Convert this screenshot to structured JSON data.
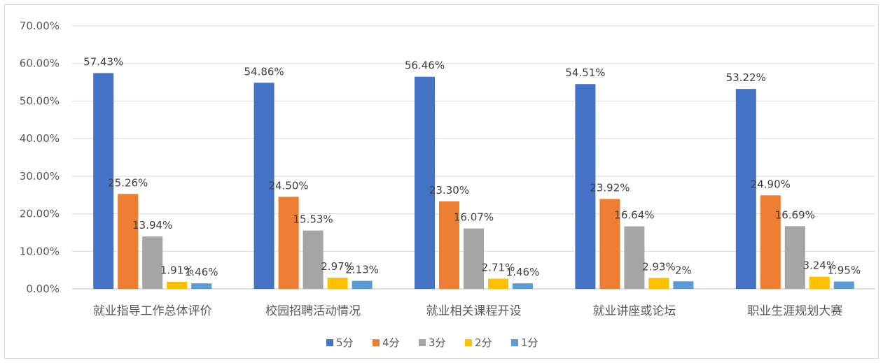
{
  "chart_data": {
    "type": "bar",
    "categories": [
      "就业指导工作总体评价",
      "校园招聘活动情况",
      "就业相关课程开设",
      "就业讲座或论坛",
      "职业生涯规划大赛"
    ],
    "series": [
      {
        "name": "5分",
        "color": "#4472C4",
        "values": [
          57.43,
          54.86,
          56.46,
          54.51,
          53.22
        ],
        "labels": [
          "57.43%",
          "54.86%",
          "56.46%",
          "54.51%",
          "53.22%"
        ]
      },
      {
        "name": "4分",
        "color": "#ED7D31",
        "values": [
          25.26,
          24.5,
          23.3,
          23.92,
          24.9
        ],
        "labels": [
          "25.26%",
          "24.50%",
          "23.30%",
          "23.92%",
          "24.90%"
        ]
      },
      {
        "name": "3分",
        "color": "#A5A5A5",
        "values": [
          13.94,
          15.53,
          16.07,
          16.64,
          16.69
        ],
        "labels": [
          "13.94%",
          "15.53%",
          "16.07%",
          "16.64%",
          "16.69%"
        ]
      },
      {
        "name": "2分",
        "color": "#FFC000",
        "values": [
          1.91,
          2.97,
          2.71,
          2.93,
          3.24
        ],
        "labels": [
          "1.91%",
          "2.97%",
          "2.71%",
          "2.93%",
          "3.24%"
        ]
      },
      {
        "name": "1分",
        "color": "#5B9BD5",
        "values": [
          1.46,
          2.13,
          1.46,
          2,
          1.95
        ],
        "labels": [
          "1.46%",
          "2.13%",
          "1.46%",
          "2%",
          "1.95%"
        ]
      }
    ],
    "y_ticks": [
      "0.00%",
      "10.00%",
      "20.00%",
      "30.00%",
      "40.00%",
      "50.00%",
      "60.00%",
      "70.00%"
    ],
    "ylim": [
      0,
      70
    ],
    "grid": true,
    "legend_position": "bottom"
  }
}
